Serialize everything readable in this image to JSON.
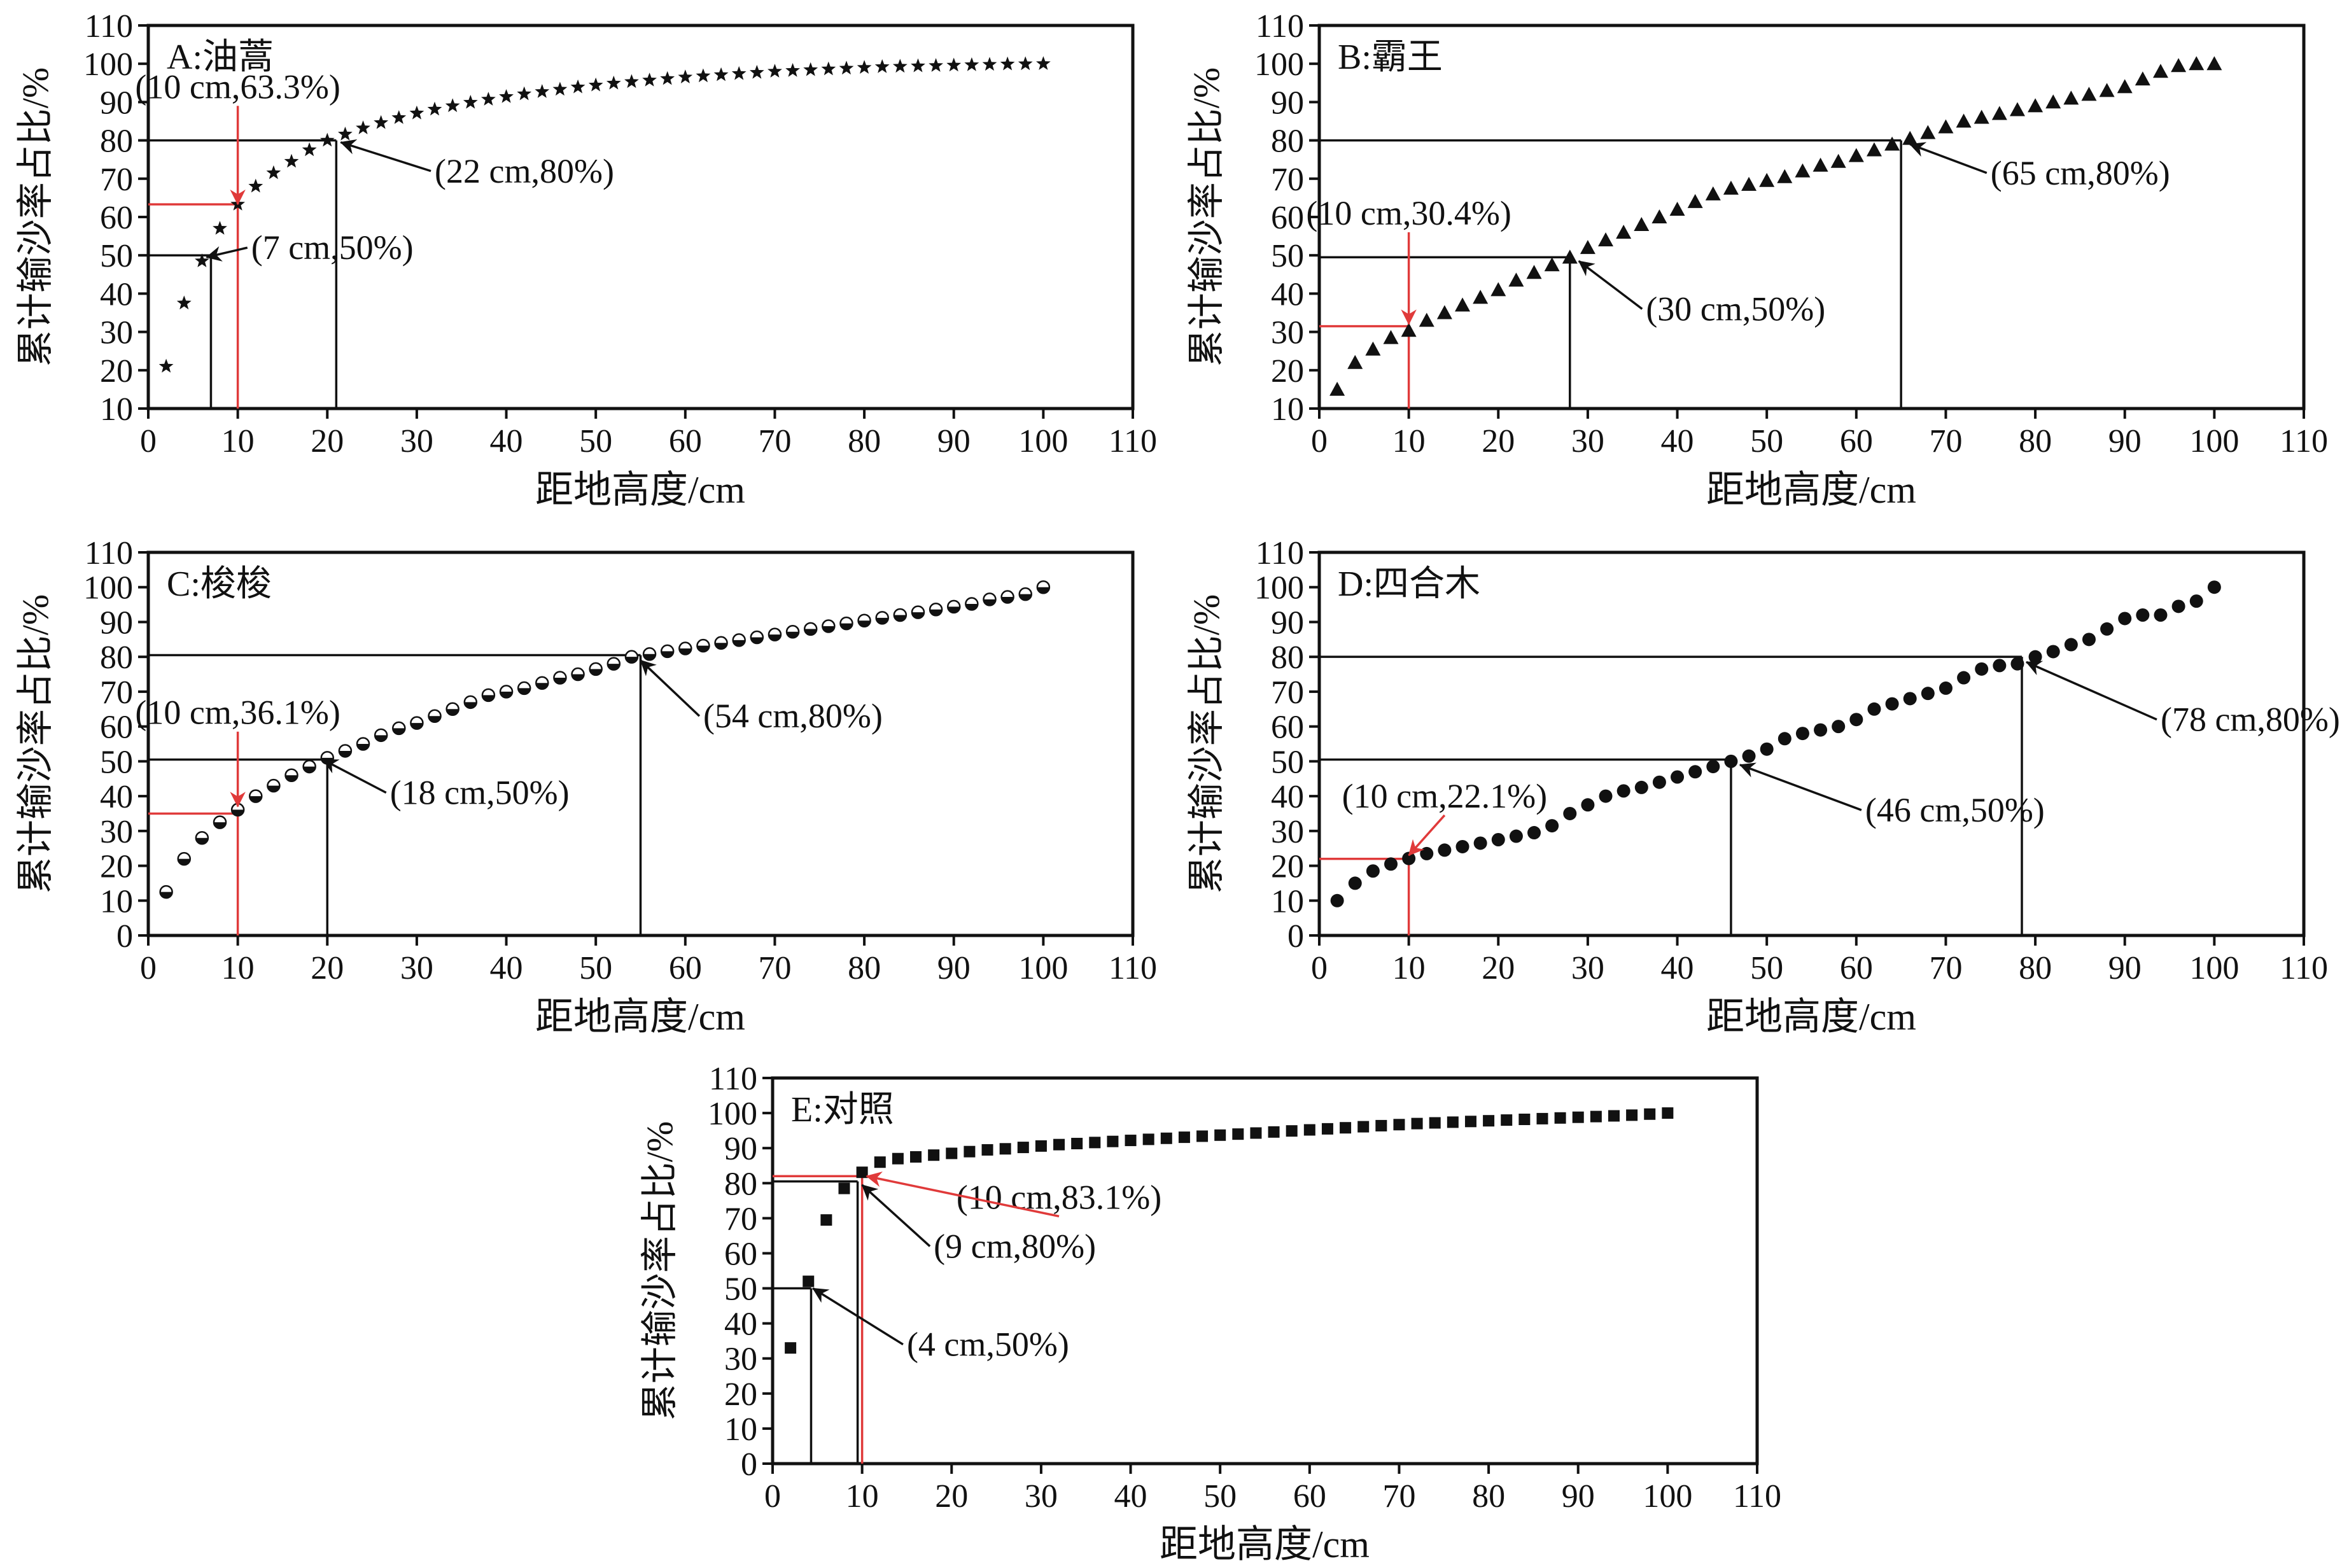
{
  "figure": {
    "background": "#ffffff",
    "reference_color": "#e03a3a",
    "ink_color": "#111111"
  },
  "chart_data": [
    {
      "id": "A",
      "type": "scatter",
      "title": "A:油蒿",
      "xlabel": "距地高度/cm",
      "ylabel": "累计输沙率占比/%",
      "xlim": [
        0,
        110
      ],
      "ylim": [
        10,
        110
      ],
      "xticks": [
        0,
        10,
        20,
        30,
        40,
        50,
        60,
        70,
        80,
        90,
        100,
        110
      ],
      "yticks": [
        10,
        20,
        30,
        40,
        50,
        60,
        70,
        80,
        90,
        100,
        110
      ],
      "marker": "star",
      "grid": false,
      "series": [
        {
          "x": [
            2,
            4,
            6,
            8,
            10,
            12,
            14,
            16,
            18,
            20,
            22,
            24,
            26,
            28,
            30,
            32,
            34,
            36,
            38,
            40,
            42,
            44,
            46,
            48,
            50,
            52,
            54,
            56,
            58,
            60,
            62,
            64,
            66,
            68,
            70,
            72,
            74,
            76,
            78,
            80,
            82,
            84,
            86,
            88,
            90,
            92,
            94,
            96,
            98,
            100
          ],
          "y": [
            21,
            37.5,
            48.5,
            57,
            63.3,
            68,
            71.5,
            74.5,
            77.5,
            80,
            81.6,
            83.2,
            84.6,
            85.9,
            87.1,
            88.1,
            89,
            89.9,
            90.7,
            91.4,
            92.1,
            92.7,
            93.3,
            93.9,
            94.4,
            94.9,
            95.3,
            95.7,
            96.1,
            96.5,
            96.8,
            97.1,
            97.4,
            97.7,
            98,
            98.2,
            98.4,
            98.6,
            98.8,
            99,
            99.2,
            99.3,
            99.4,
            99.5,
            99.6,
            99.7,
            99.8,
            99.9,
            99.95,
            100
          ]
        }
      ],
      "references": [
        {
          "x": 10,
          "y": 63.3,
          "color": "red"
        },
        {
          "x": 7,
          "y": 50,
          "color": "black"
        },
        {
          "x": 21,
          "y": 80,
          "color": "black"
        }
      ],
      "annotations": [
        {
          "text": "(10 cm,63.3%)",
          "color": "red",
          "point": [
            10,
            63.3
          ],
          "label_at": [
            10,
            94
          ]
        },
        {
          "text": "(7 cm,50%)",
          "color": "black",
          "point": [
            6.5,
            49.5
          ],
          "label_at": [
            11.5,
            52
          ]
        },
        {
          "text": "(22 cm,80%)",
          "color": "black",
          "point": [
            21.5,
            79.5
          ],
          "label_at": [
            32,
            72
          ]
        }
      ]
    },
    {
      "id": "B",
      "type": "scatter",
      "title": "B:霸王",
      "xlabel": "距地高度/cm",
      "ylabel": "累计输沙率占比/%",
      "xlim": [
        0,
        110
      ],
      "ylim": [
        10,
        110
      ],
      "xticks": [
        0,
        10,
        20,
        30,
        40,
        50,
        60,
        70,
        80,
        90,
        100,
        110
      ],
      "yticks": [
        10,
        20,
        30,
        40,
        50,
        60,
        70,
        80,
        90,
        100,
        110
      ],
      "marker": "triangle",
      "grid": false,
      "series": [
        {
          "x": [
            2,
            4,
            6,
            8,
            10,
            12,
            14,
            16,
            18,
            20,
            22,
            24,
            26,
            28,
            30,
            32,
            34,
            36,
            38,
            40,
            42,
            44,
            46,
            48,
            50,
            52,
            54,
            56,
            58,
            60,
            62,
            64,
            66,
            68,
            70,
            72,
            74,
            76,
            78,
            80,
            82,
            84,
            86,
            88,
            90,
            92,
            94,
            96,
            98,
            100
          ],
          "y": [
            15,
            22,
            25.5,
            28.5,
            30.4,
            33,
            35,
            37,
            39,
            41,
            43.5,
            45.5,
            47.5,
            49.5,
            52,
            54,
            56,
            58,
            60,
            62,
            64,
            66,
            67.5,
            68.5,
            69.5,
            70.5,
            72,
            73.5,
            74.5,
            76,
            77.5,
            79,
            80.5,
            82,
            83.5,
            85,
            86,
            87,
            88,
            89,
            90,
            91,
            92,
            93,
            94,
            96,
            98,
            99.5,
            100,
            100
          ]
        }
      ],
      "references": [
        {
          "x": 10,
          "y": 31.5,
          "color": "red"
        },
        {
          "x": 28,
          "y": 49.5,
          "color": "black"
        },
        {
          "x": 65,
          "y": 80,
          "color": "black"
        }
      ],
      "annotations": [
        {
          "text": "(10 cm,30.4%)",
          "color": "red",
          "point": [
            10,
            32
          ],
          "label_at": [
            10,
            61
          ]
        },
        {
          "text": "(30 cm,50%)",
          "color": "black",
          "point": [
            29,
            48.5
          ],
          "label_at": [
            36.5,
            36
          ]
        },
        {
          "text": "(65 cm,80%)",
          "color": "black",
          "point": [
            66,
            79
          ],
          "label_at": [
            75,
            71.5
          ]
        }
      ]
    },
    {
      "id": "C",
      "type": "scatter",
      "title": "C:梭梭",
      "xlabel": "距地高度/cm",
      "ylabel": "累计输沙率占比/%",
      "xlim": [
        0,
        110
      ],
      "ylim": [
        0,
        110
      ],
      "xticks": [
        0,
        10,
        20,
        30,
        40,
        50,
        60,
        70,
        80,
        90,
        100,
        110
      ],
      "yticks": [
        0,
        10,
        20,
        30,
        40,
        50,
        60,
        70,
        80,
        90,
        100,
        110
      ],
      "marker": "half-circle",
      "grid": false,
      "series": [
        {
          "x": [
            2,
            4,
            6,
            8,
            10,
            12,
            14,
            16,
            18,
            20,
            22,
            24,
            26,
            28,
            30,
            32,
            34,
            36,
            38,
            40,
            42,
            44,
            46,
            48,
            50,
            52,
            54,
            56,
            58,
            60,
            62,
            64,
            66,
            68,
            70,
            72,
            74,
            76,
            78,
            80,
            82,
            84,
            86,
            88,
            90,
            92,
            94,
            96,
            98,
            100
          ],
          "y": [
            12.5,
            22,
            28,
            32.5,
            36.1,
            40,
            43,
            46,
            48.5,
            51,
            53,
            55,
            57.5,
            59.5,
            61,
            63,
            65,
            67,
            69,
            70,
            71,
            72.5,
            74,
            75,
            76.5,
            78,
            80,
            80.8,
            81.6,
            82.4,
            83.2,
            84,
            84.8,
            85.6,
            86.4,
            87.2,
            88,
            88.8,
            89.6,
            90.4,
            91.2,
            92,
            92.8,
            93.6,
            94.4,
            95.2,
            96.5,
            97.2,
            98,
            100
          ]
        }
      ],
      "references": [
        {
          "x": 10,
          "y": 35,
          "color": "red"
        },
        {
          "x": 20,
          "y": 50.5,
          "color": "black"
        },
        {
          "x": 55,
          "y": 80.5,
          "color": "black"
        }
      ],
      "annotations": [
        {
          "text": "(10 cm,36.1%)",
          "color": "red",
          "point": [
            10,
            37
          ],
          "label_at": [
            10,
            64
          ]
        },
        {
          "text": "(18 cm,50%)",
          "color": "black",
          "point": [
            19.5,
            50.5
          ],
          "label_at": [
            27,
            41
          ]
        },
        {
          "text": "(54 cm,80%)",
          "color": "black",
          "point": [
            55,
            79
          ],
          "label_at": [
            62,
            63
          ]
        }
      ]
    },
    {
      "id": "D",
      "type": "scatter",
      "title": "D:四合木",
      "xlabel": "距地高度/cm",
      "ylabel": "累计输沙率占比/%",
      "xlim": [
        0,
        110
      ],
      "ylim": [
        0,
        110
      ],
      "xticks": [
        0,
        10,
        20,
        30,
        40,
        50,
        60,
        70,
        80,
        90,
        100,
        110
      ],
      "yticks": [
        0,
        10,
        20,
        30,
        40,
        50,
        60,
        70,
        80,
        90,
        100,
        110
      ],
      "marker": "circle",
      "grid": false,
      "series": [
        {
          "x": [
            2,
            4,
            6,
            8,
            10,
            12,
            14,
            16,
            18,
            20,
            22,
            24,
            26,
            28,
            30,
            32,
            34,
            36,
            38,
            40,
            42,
            44,
            46,
            48,
            50,
            52,
            54,
            56,
            58,
            60,
            62,
            64,
            66,
            68,
            70,
            72,
            74,
            76,
            78,
            80,
            82,
            84,
            86,
            88,
            90,
            92,
            94,
            96,
            98,
            100
          ],
          "y": [
            10,
            15,
            18.5,
            20.5,
            22.1,
            23.5,
            24.5,
            25.5,
            26.5,
            27.5,
            28.5,
            29.5,
            31.5,
            35,
            37.5,
            40,
            41.5,
            42.5,
            44,
            45.5,
            47,
            48.5,
            50,
            51.5,
            53.5,
            56.5,
            58,
            59,
            60,
            62,
            65,
            66.5,
            68,
            69.5,
            71,
            74,
            76.5,
            77.5,
            78,
            80,
            81.5,
            83.5,
            85,
            88,
            91,
            92,
            92,
            94.5,
            96,
            100
          ]
        }
      ],
      "references": [
        {
          "x": 10,
          "y": 22,
          "color": "red"
        },
        {
          "x": 46,
          "y": 50.5,
          "color": "black"
        },
        {
          "x": 78.5,
          "y": 80,
          "color": "black"
        }
      ],
      "annotations": [
        {
          "text": "(10 cm,22.1%)",
          "color": "red",
          "point": [
            10,
            23
          ],
          "label_at": [
            14,
            40
          ]
        },
        {
          "text": "(46 cm,50%)",
          "color": "black",
          "point": [
            47,
            49
          ],
          "label_at": [
            61,
            36
          ]
        },
        {
          "text": "(78 cm,80%)",
          "color": "black",
          "point": [
            79,
            78.5
          ],
          "label_at": [
            94,
            62
          ]
        }
      ]
    },
    {
      "id": "E",
      "type": "scatter",
      "title": "E:对照",
      "xlabel": "距地高度/cm",
      "ylabel": "累计输沙率占比/%",
      "xlim": [
        0,
        110
      ],
      "ylim": [
        0,
        110
      ],
      "xticks": [
        0,
        10,
        20,
        30,
        40,
        50,
        60,
        70,
        80,
        90,
        100,
        110
      ],
      "yticks": [
        0,
        10,
        20,
        30,
        40,
        50,
        60,
        70,
        80,
        90,
        100,
        110
      ],
      "marker": "square",
      "grid": false,
      "series": [
        {
          "x": [
            2,
            4,
            6,
            8,
            10,
            12,
            14,
            16,
            18,
            20,
            22,
            24,
            26,
            28,
            30,
            32,
            34,
            36,
            38,
            40,
            42,
            44,
            46,
            48,
            50,
            52,
            54,
            56,
            58,
            60,
            62,
            64,
            66,
            68,
            70,
            72,
            74,
            76,
            78,
            80,
            82,
            84,
            86,
            88,
            90,
            92,
            94,
            96,
            98,
            100
          ],
          "y": [
            33,
            52,
            69.5,
            78.5,
            83.1,
            86,
            87,
            87.5,
            88,
            88.5,
            89,
            89.5,
            89.8,
            90.2,
            90.6,
            91,
            91.3,
            91.6,
            91.9,
            92.2,
            92.5,
            92.8,
            93.1,
            93.4,
            93.7,
            94,
            94.3,
            94.6,
            94.9,
            95.2,
            95.5,
            95.8,
            96.1,
            96.4,
            96.7,
            97,
            97.2,
            97.4,
            97.6,
            97.8,
            98,
            98.2,
            98.4,
            98.6,
            98.8,
            99,
            99.2,
            99.4,
            99.7,
            100
          ]
        }
      ],
      "references": [
        {
          "x": 10,
          "y": 82,
          "color": "red"
        },
        {
          "x": 4.3,
          "y": 50,
          "color": "black"
        },
        {
          "x": 9.5,
          "y": 80.5,
          "color": "black"
        }
      ],
      "annotations": [
        {
          "text": "(10 cm,83.1%)",
          "color": "red",
          "point": [
            10.5,
            82
          ],
          "label_at": [
            32,
            76
          ]
        },
        {
          "text": "(9 cm,80%)",
          "color": "black",
          "point": [
            10,
            79.5
          ],
          "label_at": [
            18,
            62
          ]
        },
        {
          "text": "(4 cm,50%)",
          "color": "black",
          "point": [
            4.5,
            50
          ],
          "label_at": [
            15,
            34
          ]
        }
      ]
    }
  ]
}
